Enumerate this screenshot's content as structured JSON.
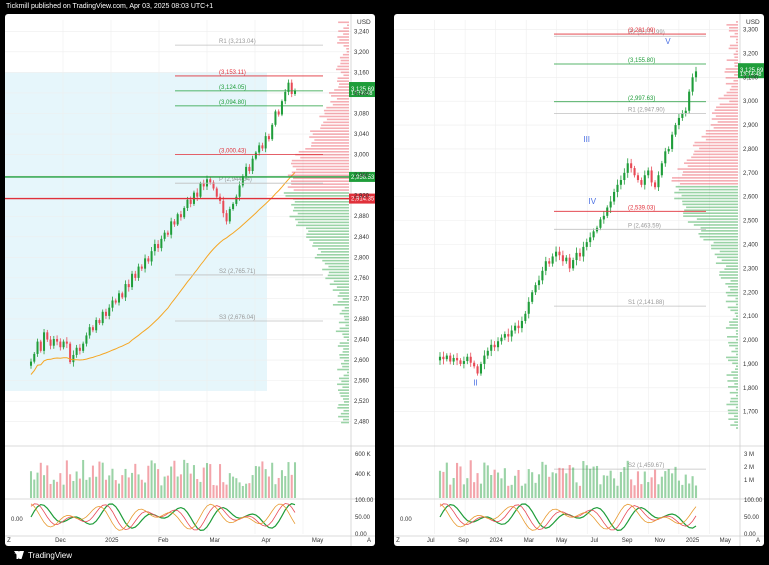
{
  "header": {
    "published": "Tickmill published on TradingView.com, Apr 03, 2025 08:03 UTC+1"
  },
  "footer": {
    "brand": "TradingView"
  },
  "colors": {
    "up": "#1f9d3a",
    "down": "#e84a56",
    "bg_zone": "#e6f6fb",
    "green_line": "#2ca02c",
    "red_line": "#e0303a",
    "ma": "#f5a623",
    "grid": "#eeeeee"
  },
  "chart_data": [
    {
      "type": "candlestick",
      "panel": "left",
      "currency": "USD",
      "yticks": [
        3240,
        3200,
        3160,
        3120,
        3080,
        3040,
        3000,
        2960,
        2920,
        2880,
        2840,
        2800,
        2760,
        2720,
        2680,
        2640,
        2600,
        2560,
        2520,
        2480
      ],
      "xticks": [
        "Z",
        "Dec",
        "2025",
        "Feb",
        "Mar",
        "Apr",
        "May",
        "A"
      ],
      "ylim": [
        2460,
        3262
      ],
      "price_badges": [
        {
          "label": "3,125.69",
          "sub": "13:56:48",
          "value": 3125.69,
          "color": "#1f9d3a"
        },
        {
          "label": "2,956.53",
          "value": 2956.53,
          "color": "#1f9d3a"
        },
        {
          "label": "2,914.35",
          "value": 2914.35,
          "color": "#e0303a"
        }
      ],
      "levels": [
        {
          "label": "R1 (3,213.04)",
          "value": 3213.04,
          "color": "#c0c0c0"
        },
        {
          "label": "(3,153.11)",
          "value": 3153.11,
          "color": "#e0303a"
        },
        {
          "label": "(3,124.05)",
          "value": 3124.05,
          "color": "#1f9d3a"
        },
        {
          "label": "(3,094.80)",
          "value": 3094.8,
          "color": "#1f9d3a"
        },
        {
          "label": "(3,000.43)",
          "value": 3000.43,
          "color": "#e0303a"
        },
        {
          "label": "P (2,944.34)",
          "value": 2944.34,
          "color": "#c0c0c0"
        },
        {
          "label": "S2 (2,765.71)",
          "value": 2765.71,
          "color": "#c0c0c0"
        },
        {
          "label": "S3 (2,676.04)",
          "value": 2676.04,
          "color": "#c0c0c0"
        }
      ],
      "volume_ticks": [
        "600 K",
        "400 K"
      ],
      "osc_ticks": [
        "100.00",
        "50.00",
        "0.00"
      ],
      "osc_left_label": "0.00",
      "closes": [
        2597,
        2612,
        2636,
        2618,
        2654,
        2640,
        2628,
        2641,
        2636,
        2625,
        2636,
        2632,
        2596,
        2610,
        2624,
        2618,
        2632,
        2648,
        2664,
        2658,
        2678,
        2672,
        2694,
        2686,
        2702,
        2716,
        2712,
        2730,
        2722,
        2748,
        2742,
        2768,
        2760,
        2782,
        2778,
        2798,
        2792,
        2812,
        2826,
        2818,
        2836,
        2848,
        2844,
        2870,
        2864,
        2884,
        2878,
        2896,
        2912,
        2904,
        2926,
        2918,
        2944,
        2938,
        2952,
        2946,
        2934,
        2918,
        2910,
        2886,
        2870,
        2894,
        2904,
        2918,
        2940,
        2958,
        2976,
        2968,
        2992,
        3004,
        3018,
        3012,
        3036,
        3030,
        3058,
        3084,
        3078,
        3104,
        3122,
        3140,
        3118,
        3125
      ]
    },
    {
      "type": "candlestick",
      "panel": "right",
      "currency": "USD",
      "yticks": [
        3300,
        3200,
        3100,
        3000,
        2900,
        2800,
        2700,
        2600,
        2500,
        2400,
        2300,
        2200,
        2100,
        2000,
        1900,
        1800,
        1700
      ],
      "xticks": [
        "Z",
        "Jul",
        "Sep",
        "2024",
        "Mar",
        "May",
        "Jul",
        "Sep",
        "Nov",
        "2025",
        "May",
        "A"
      ],
      "ylim": [
        1615,
        3340
      ],
      "price_badges": [
        {
          "label": "3,125.69",
          "sub": "13:14:48",
          "value": 3125.69,
          "color": "#1f9d3a"
        }
      ],
      "levels": [
        {
          "label": "R2 (3,271.99)",
          "value": 3271.99,
          "color": "#c0c0c0"
        },
        {
          "label": "(3,281.09)",
          "value": 3281.09,
          "color": "#e0303a"
        },
        {
          "label": "(3,155.80)",
          "value": 3155.8,
          "color": "#1f9d3a"
        },
        {
          "label": "(2,997.63)",
          "value": 2997.63,
          "color": "#1f9d3a"
        },
        {
          "label": "R1 (2,947.90)",
          "value": 2947.9,
          "color": "#c0c0c0"
        },
        {
          "label": "(2,539.03)",
          "value": 2539.03,
          "color": "#e0303a"
        },
        {
          "label": "P (2,463.59)",
          "value": 2463.59,
          "color": "#c0c0c0"
        },
        {
          "label": "S1 (2,141.88)",
          "value": 2141.88,
          "color": "#c0c0c0"
        },
        {
          "label": "S2 (1,459.67)",
          "value": 1459.67,
          "color": "#c0c0c0"
        }
      ],
      "wave_labels": [
        {
          "label": "II",
          "value": 1810
        },
        {
          "label": "III",
          "value": 2830
        },
        {
          "label": "IV",
          "value": 2570
        },
        {
          "label": "V",
          "value": 3240
        }
      ],
      "volume_ticks": [
        "3 M",
        "2 M",
        "1 M"
      ],
      "osc_ticks": [
        "100.00",
        "50.00",
        "0.00"
      ],
      "osc_left_label": "0.00",
      "closes": [
        1930,
        1920,
        1935,
        1910,
        1925,
        1915,
        1900,
        1912,
        1930,
        1905,
        1890,
        1860,
        1900,
        1935,
        1955,
        1980,
        1970,
        1995,
        2010,
        2025,
        2015,
        2040,
        2060,
        2050,
        2080,
        2110,
        2160,
        2200,
        2230,
        2250,
        2290,
        2330,
        2320,
        2350,
        2370,
        2355,
        2330,
        2345,
        2300,
        2335,
        2365,
        2350,
        2390,
        2410,
        2430,
        2455,
        2470,
        2505,
        2520,
        2555,
        2580,
        2620,
        2650,
        2670,
        2700,
        2740,
        2720,
        2690,
        2670,
        2650,
        2690,
        2710,
        2660,
        2640,
        2690,
        2740,
        2790,
        2800,
        2860,
        2900,
        2930,
        2950,
        2960,
        3040,
        3100,
        3125
      ]
    }
  ]
}
